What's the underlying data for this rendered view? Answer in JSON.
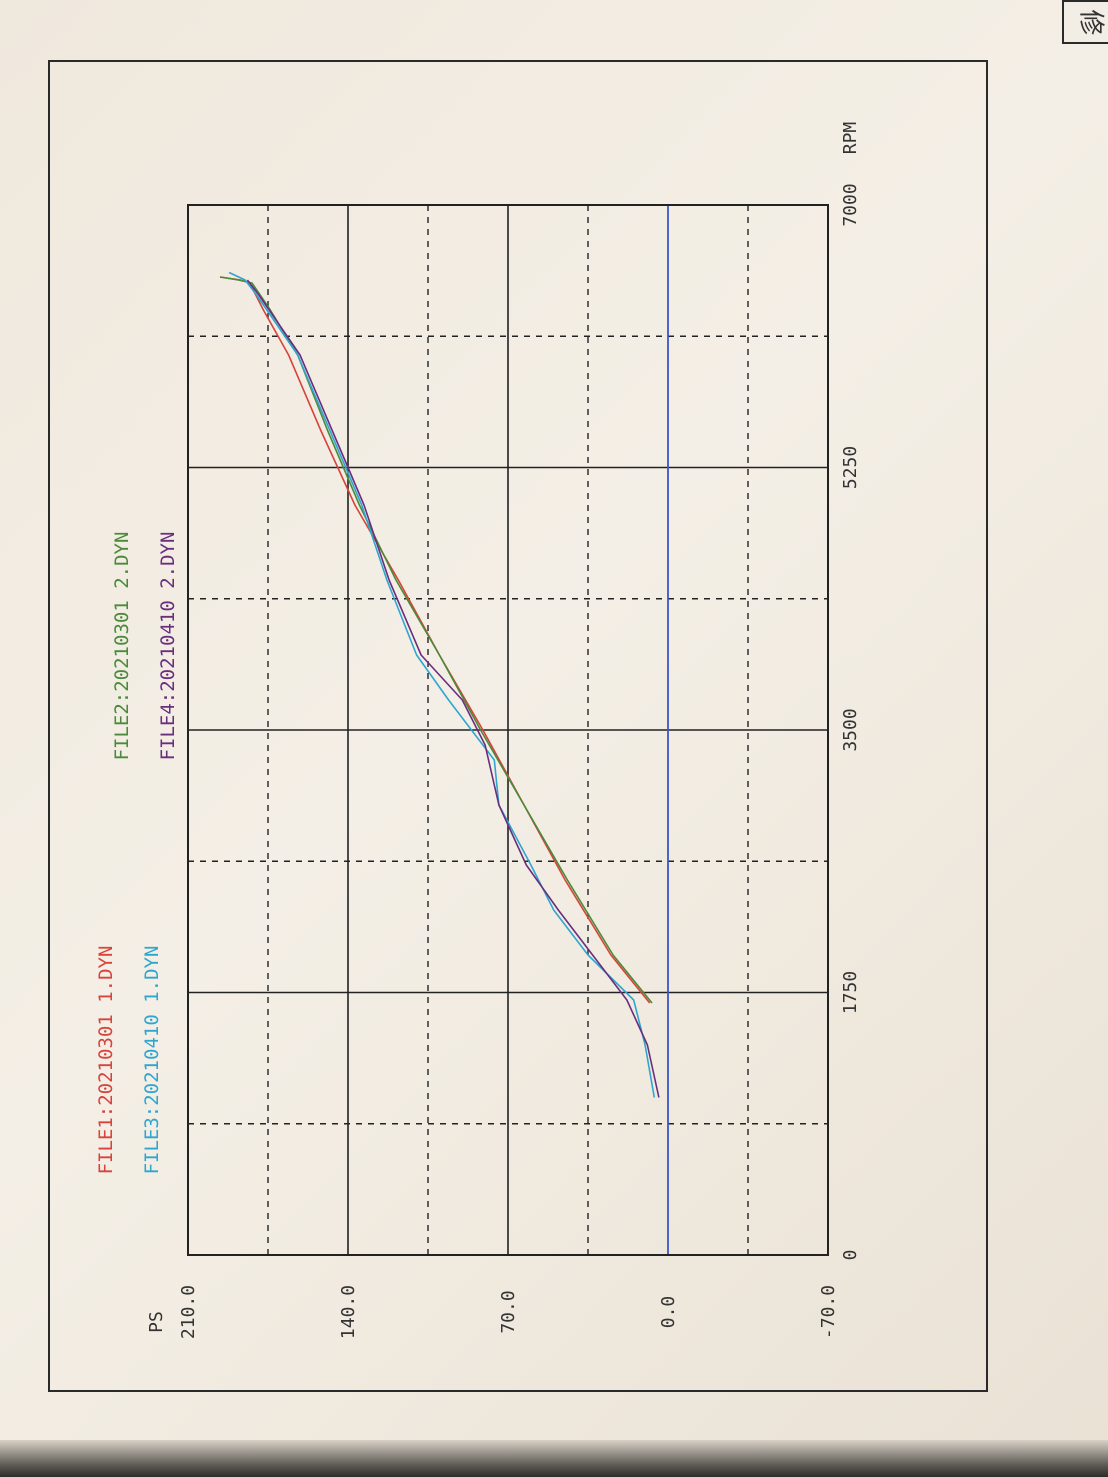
{
  "corner_label": "修",
  "chart_data": {
    "type": "line",
    "xlabel": "RPM",
    "ylabel": "PS",
    "xlim": [
      0,
      7000
    ],
    "ylim": [
      -70,
      210
    ],
    "x_ticks": [
      "0",
      "1750",
      "3500",
      "5250",
      "7000"
    ],
    "y_ticks": [
      "-70.0",
      "0.0",
      "70.0",
      "140.0",
      "210.0"
    ],
    "grid": true,
    "legend": [
      {
        "name": "FILE1:20210301 1.DYN",
        "color": "#d8433b"
      },
      {
        "name": "FILE2:20210301 2.DYN",
        "color": "#4a8a3a"
      },
      {
        "name": "FILE3:20210410 1.DYN",
        "color": "#2fa6cf"
      },
      {
        "name": "FILE4:20210410 2.DYN",
        "color": "#6a2e7e"
      }
    ],
    "series": [
      {
        "name": "FILE1:20210301 1.DYN",
        "color": "#d8433b",
        "points": [
          [
            1680,
            8
          ],
          [
            2000,
            25
          ],
          [
            2500,
            45
          ],
          [
            3000,
            63
          ],
          [
            3500,
            81
          ],
          [
            4000,
            100
          ],
          [
            4500,
            118
          ],
          [
            5000,
            137
          ],
          [
            5500,
            152
          ],
          [
            6000,
            166
          ],
          [
            6300,
            177
          ],
          [
            6480,
            183
          ],
          [
            6500,
            187
          ],
          [
            6520,
            196
          ]
        ]
      },
      {
        "name": "FILE2:20210301 2.DYN",
        "color": "#4a8a3a",
        "points": [
          [
            1680,
            7
          ],
          [
            2000,
            24
          ],
          [
            2500,
            44
          ],
          [
            3000,
            63
          ],
          [
            3500,
            82
          ],
          [
            4000,
            100
          ],
          [
            4500,
            119
          ],
          [
            5000,
            135
          ],
          [
            5500,
            149
          ],
          [
            6000,
            162
          ],
          [
            6300,
            174
          ],
          [
            6480,
            182
          ],
          [
            6500,
            188
          ],
          [
            6520,
            196
          ]
        ]
      },
      {
        "name": "FILE3:20210410 1.DYN",
        "color": "#2fa6cf",
        "points": [
          [
            1050,
            6
          ],
          [
            1400,
            10
          ],
          [
            1700,
            15
          ],
          [
            2000,
            35
          ],
          [
            2300,
            50
          ],
          [
            2600,
            60
          ],
          [
            3000,
            74
          ],
          [
            3300,
            76
          ],
          [
            3700,
            96
          ],
          [
            4000,
            110
          ],
          [
            4500,
            123
          ],
          [
            5000,
            134
          ],
          [
            5500,
            148
          ],
          [
            6000,
            162
          ],
          [
            6400,
            180
          ],
          [
            6500,
            185
          ],
          [
            6550,
            192
          ]
        ]
      },
      {
        "name": "FILE4:20210410 2.DYN",
        "color": "#6a2e7e",
        "points": [
          [
            1050,
            4
          ],
          [
            1400,
            9
          ],
          [
            1700,
            18
          ],
          [
            2000,
            33
          ],
          [
            2300,
            48
          ],
          [
            2600,
            62
          ],
          [
            3000,
            74
          ],
          [
            3400,
            80
          ],
          [
            3700,
            90
          ],
          [
            4000,
            108
          ],
          [
            4500,
            122
          ],
          [
            5000,
            133
          ],
          [
            5500,
            147
          ],
          [
            6000,
            161
          ],
          [
            6400,
            179
          ],
          [
            6500,
            184
          ]
        ]
      },
      {
        "name": "baseline",
        "color": "#3b56c6",
        "points": [
          [
            0,
            0
          ],
          [
            7000,
            0
          ]
        ]
      }
    ]
  }
}
